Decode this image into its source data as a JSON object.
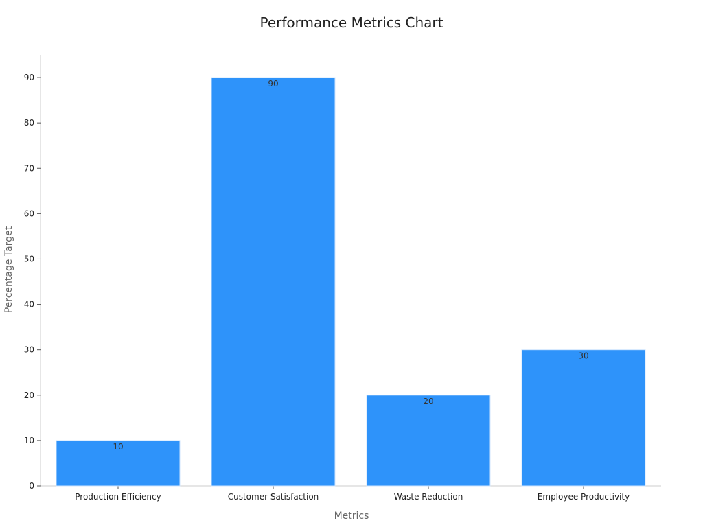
{
  "chart_data": {
    "type": "bar",
    "title": "Performance Metrics Chart",
    "xlabel": "Metrics",
    "ylabel": "Percentage Target",
    "categories": [
      "Production Efficiency",
      "Customer Satisfaction",
      "Waste Reduction",
      "Employee Productivity"
    ],
    "values": [
      10,
      90,
      20,
      30
    ],
    "data_labels": [
      "10",
      "90",
      "20",
      "30"
    ],
    "ylim": [
      0,
      95
    ],
    "yticks": [
      0,
      10,
      20,
      30,
      40,
      50,
      60,
      70,
      80,
      90
    ],
    "ytick_labels": [
      "0",
      "10",
      "20",
      "30",
      "40",
      "50",
      "60",
      "70",
      "80",
      "90"
    ],
    "grid": false,
    "legend": "none",
    "colors": {
      "bar": "#2e93fa",
      "bar_edge": "#d0e6fd",
      "axis": "#cccccc",
      "tick": "#555555",
      "title_text": "#222222",
      "axis_label_text": "#666666",
      "tick_label_text": "#222222",
      "data_label_text": "#333333"
    }
  }
}
